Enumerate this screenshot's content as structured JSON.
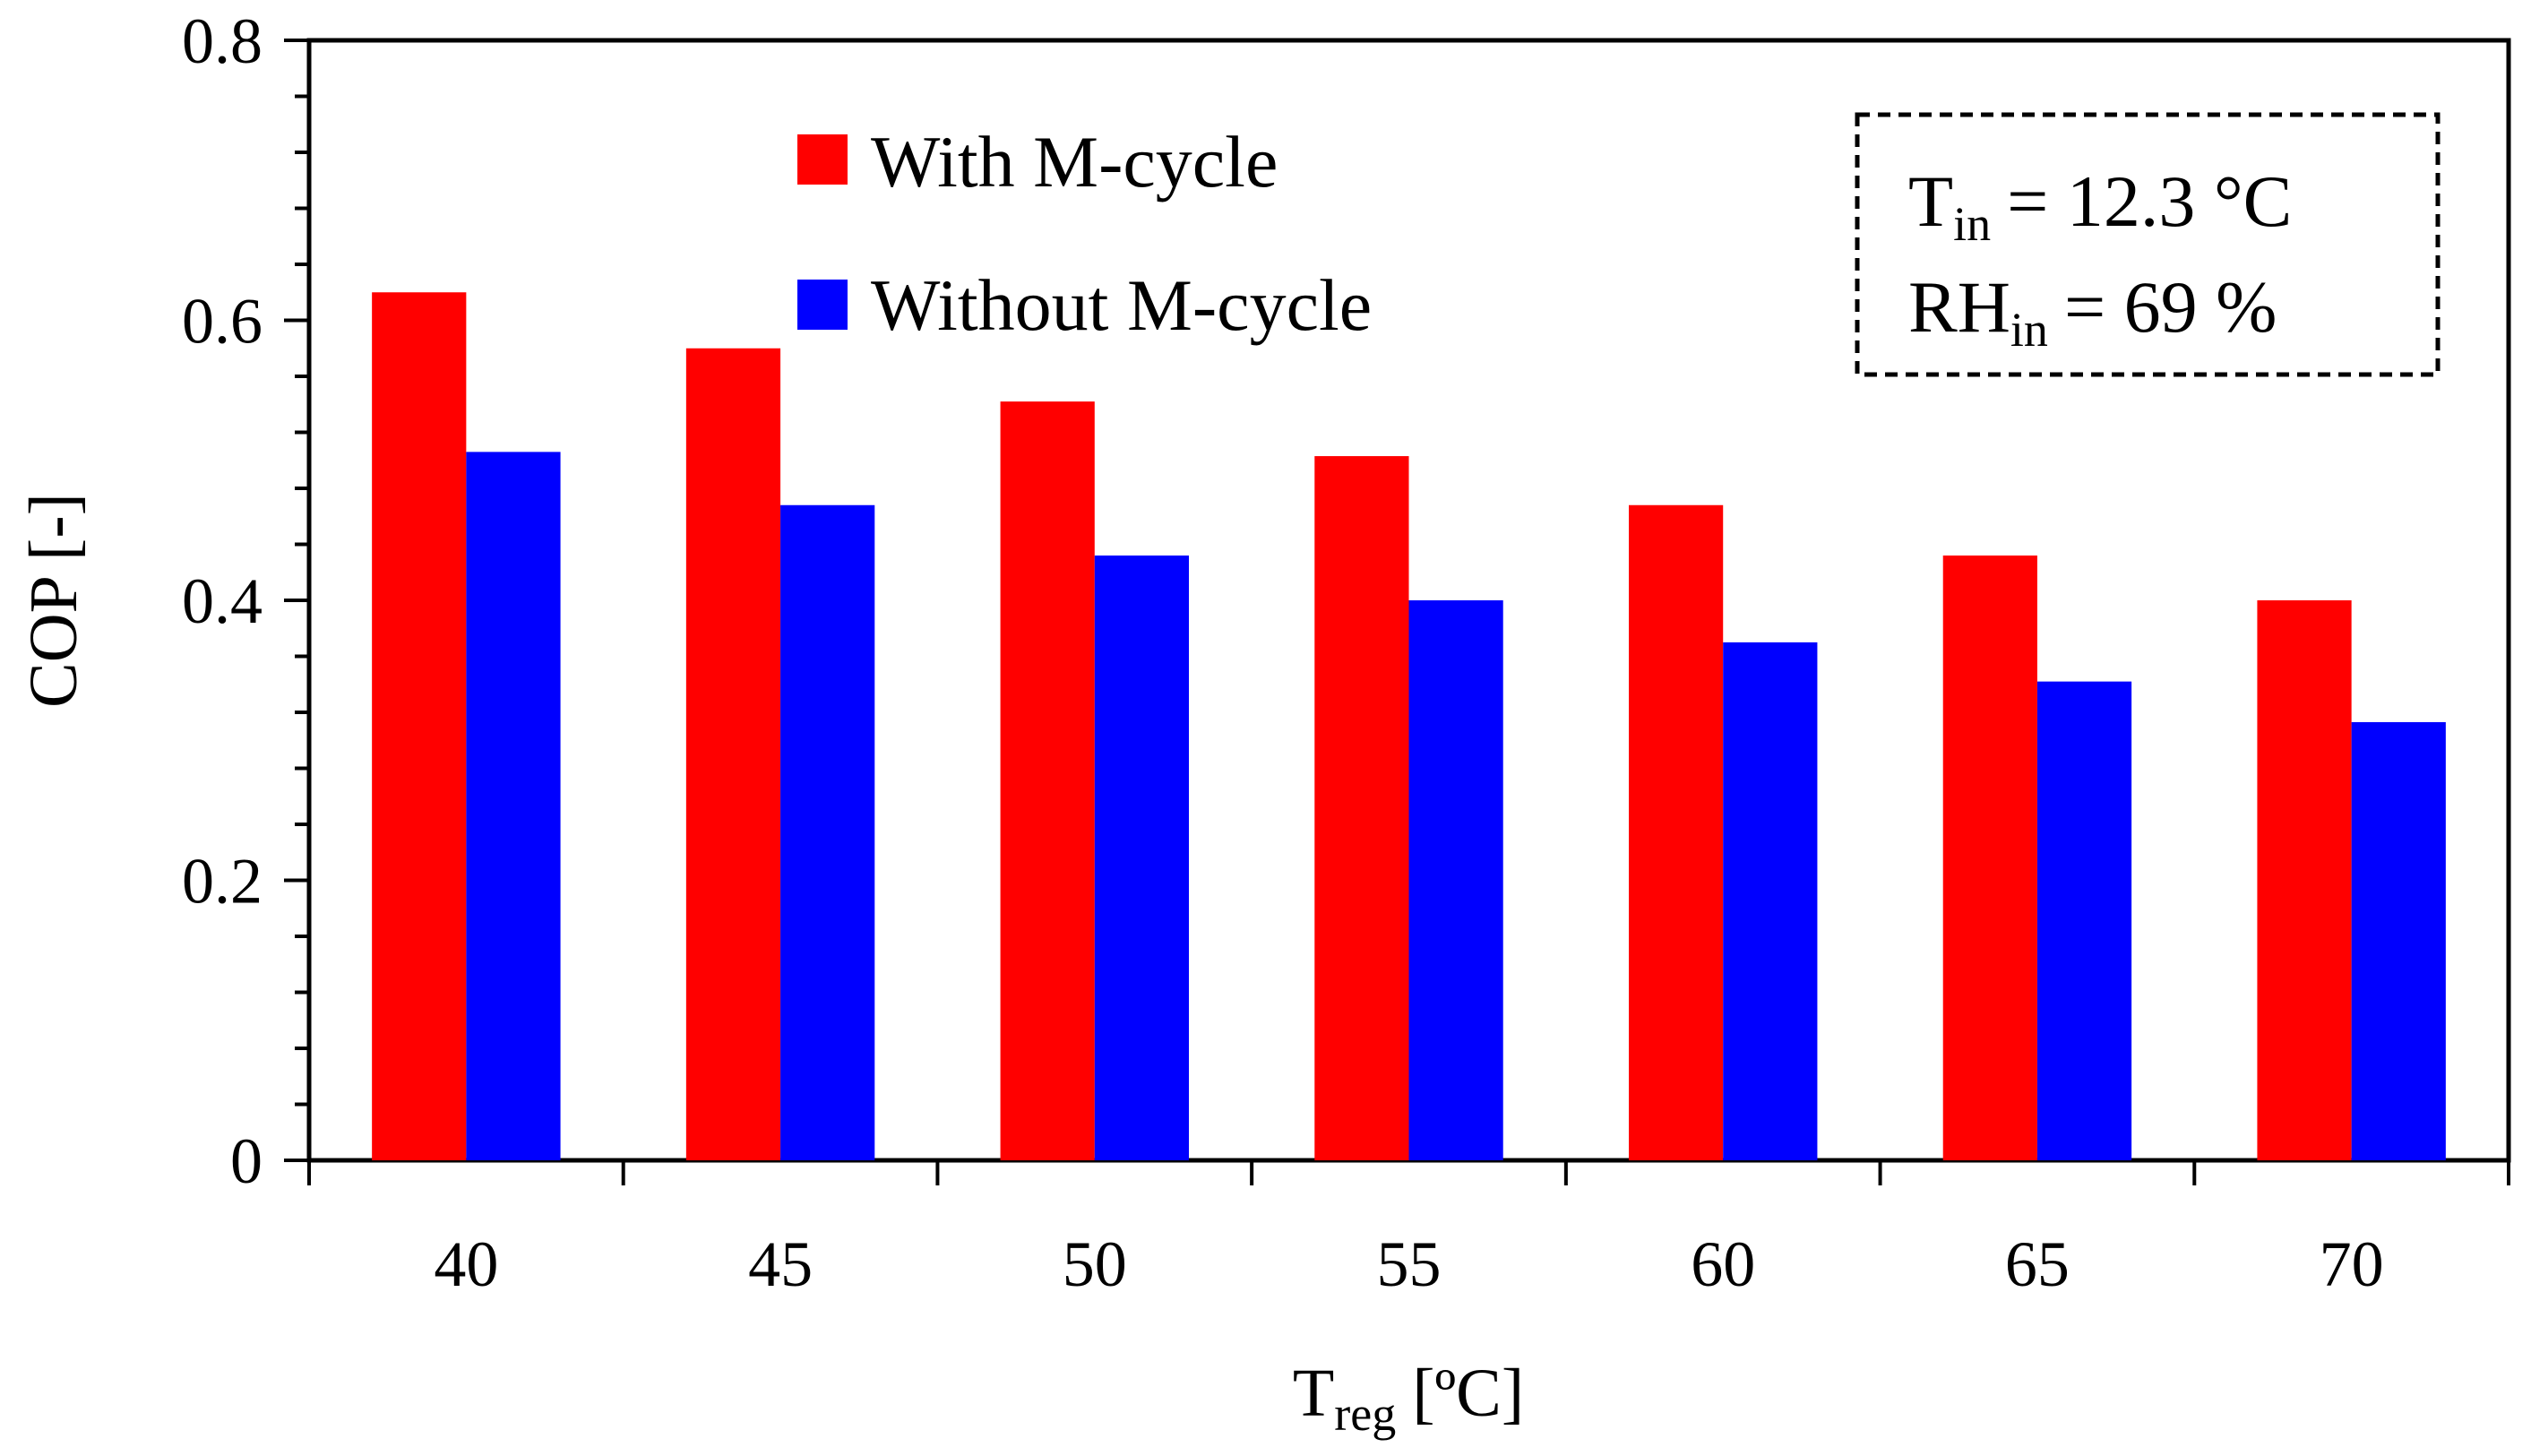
{
  "chart_data": {
    "type": "bar",
    "categories": [
      "40",
      "45",
      "50",
      "55",
      "60",
      "65",
      "70"
    ],
    "series": [
      {
        "name": "With M-cycle",
        "color": "#ff0000",
        "values": [
          0.62,
          0.58,
          0.542,
          0.503,
          0.468,
          0.432,
          0.4
        ]
      },
      {
        "name": "Without M-cycle",
        "color": "#0000ff",
        "values": [
          0.506,
          0.468,
          0.432,
          0.4,
          0.37,
          0.342,
          0.313
        ]
      }
    ],
    "ylim": [
      0,
      0.8
    ],
    "yticks": [
      "0",
      "0.2",
      "0.4",
      "0.6",
      "0.8"
    ],
    "xlabel": {
      "main": "T",
      "sub": "reg",
      "unit": "[ºC]"
    },
    "ylabel": "COP [-]",
    "legend": {
      "position": "top-left-inside"
    },
    "annotation": {
      "line1": {
        "main": "T",
        "sub": "in",
        "rest": "= 12.3 °C"
      },
      "line2": {
        "main": "RH",
        "sub": "in",
        "rest": "= 69 %"
      }
    }
  }
}
